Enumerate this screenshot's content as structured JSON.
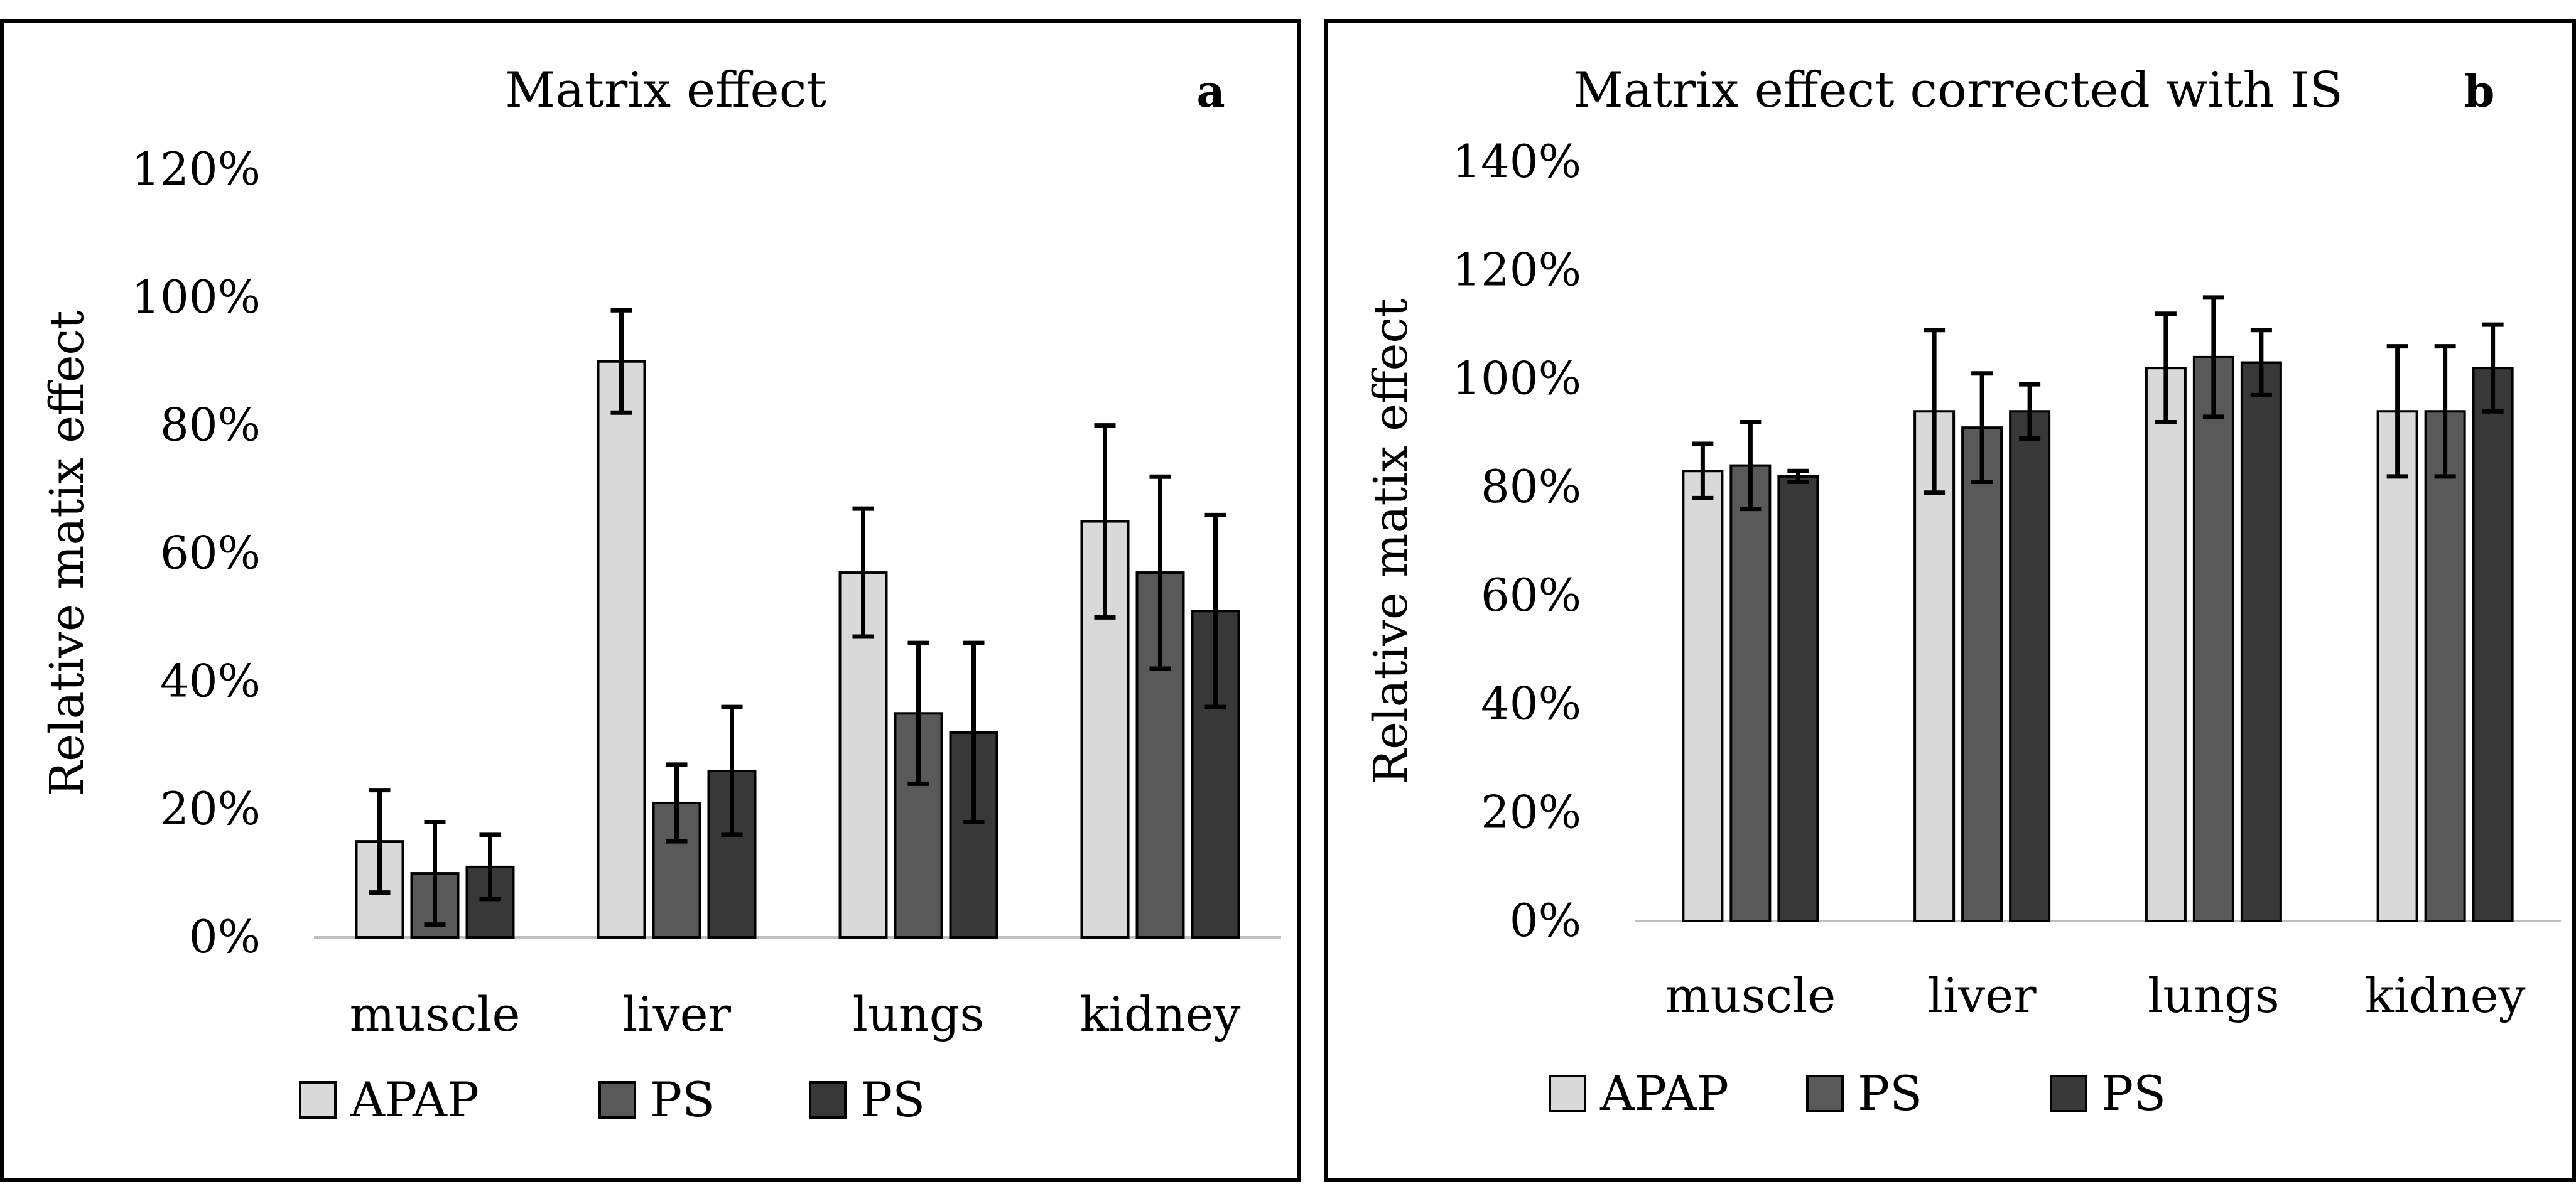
{
  "chart_data": [
    {
      "panel": "a",
      "type": "bar",
      "title": "Matrix effect",
      "panel_label": "a",
      "ylabel": "Relative matix effect",
      "xlabel": "",
      "ylim": [
        0,
        120
      ],
      "yticks": [
        0,
        20,
        40,
        60,
        80,
        100,
        120
      ],
      "ytick_labels": [
        "0%",
        "20%",
        "40%",
        "60%",
        "80%",
        "100%",
        "120%"
      ],
      "categories": [
        "muscle",
        "liver",
        "lungs",
        "kidney"
      ],
      "series": [
        {
          "name": "APAP",
          "color": "#d9d9d9",
          "values": [
            15,
            90,
            57,
            65
          ],
          "errors": [
            8,
            8,
            10,
            15
          ]
        },
        {
          "name": "PS",
          "color": "#595959",
          "values": [
            10,
            21,
            35,
            57
          ],
          "errors": [
            8,
            6,
            11,
            15
          ]
        },
        {
          "name": "PS",
          "color": "#383838",
          "values": [
            11,
            26,
            32,
            51
          ],
          "errors": [
            5,
            10,
            14,
            15
          ]
        }
      ],
      "legend": {
        "position": "bottom",
        "labels": [
          "APAP",
          "PS",
          "PS"
        ]
      }
    },
    {
      "panel": "b",
      "type": "bar",
      "title": "Matrix effect corrected with IS",
      "panel_label": "b",
      "ylabel": "Relative matix effect",
      "xlabel": "",
      "ylim": [
        0,
        140
      ],
      "yticks": [
        0,
        20,
        40,
        60,
        80,
        100,
        120,
        140
      ],
      "ytick_labels": [
        "0%",
        "20%",
        "40%",
        "60%",
        "80%",
        "100%",
        "120%",
        "140%"
      ],
      "categories": [
        "muscle",
        "liver",
        "lungs",
        "kidney"
      ],
      "series": [
        {
          "name": "APAP",
          "color": "#d9d9d9",
          "values": [
            83,
            94,
            102,
            94
          ],
          "errors": [
            5,
            15,
            10,
            12
          ]
        },
        {
          "name": "PS",
          "color": "#595959",
          "values": [
            84,
            91,
            104,
            94
          ],
          "errors": [
            8,
            10,
            11,
            12
          ]
        },
        {
          "name": "PS",
          "color": "#383838",
          "values": [
            82,
            94,
            103,
            102
          ],
          "errors": [
            1,
            5,
            6,
            8
          ]
        }
      ],
      "legend": {
        "position": "bottom",
        "labels": [
          "APAP",
          "PS",
          "PS"
        ]
      }
    }
  ]
}
